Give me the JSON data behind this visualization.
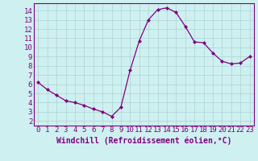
{
  "x": [
    0,
    1,
    2,
    3,
    4,
    5,
    6,
    7,
    8,
    9,
    10,
    11,
    12,
    13,
    14,
    15,
    16,
    17,
    18,
    19,
    20,
    21,
    22,
    23
  ],
  "y": [
    6.2,
    5.4,
    4.8,
    4.2,
    4.0,
    3.7,
    3.3,
    3.0,
    2.5,
    3.5,
    7.5,
    10.7,
    13.0,
    14.1,
    14.3,
    13.8,
    12.3,
    10.6,
    10.5,
    9.4,
    8.5,
    8.2,
    8.3,
    9.0
  ],
  "line_color": "#800080",
  "marker": "D",
  "marker_size": 2,
  "bg_color": "#cff0f0",
  "grid_color": "#b0d8d8",
  "xlabel": "Windchill (Refroidissement éolien,°C)",
  "xlim": [
    -0.5,
    23.5
  ],
  "ylim": [
    1.5,
    14.8
  ],
  "xticks": [
    0,
    1,
    2,
    3,
    4,
    5,
    6,
    7,
    8,
    9,
    10,
    11,
    12,
    13,
    14,
    15,
    16,
    17,
    18,
    19,
    20,
    21,
    22,
    23
  ],
  "yticks": [
    2,
    3,
    4,
    5,
    6,
    7,
    8,
    9,
    10,
    11,
    12,
    13,
    14
  ],
  "tick_color": "#800080",
  "label_color": "#800080",
  "spine_color": "#800080",
  "font_size": 6.5,
  "xlabel_fontsize": 7
}
